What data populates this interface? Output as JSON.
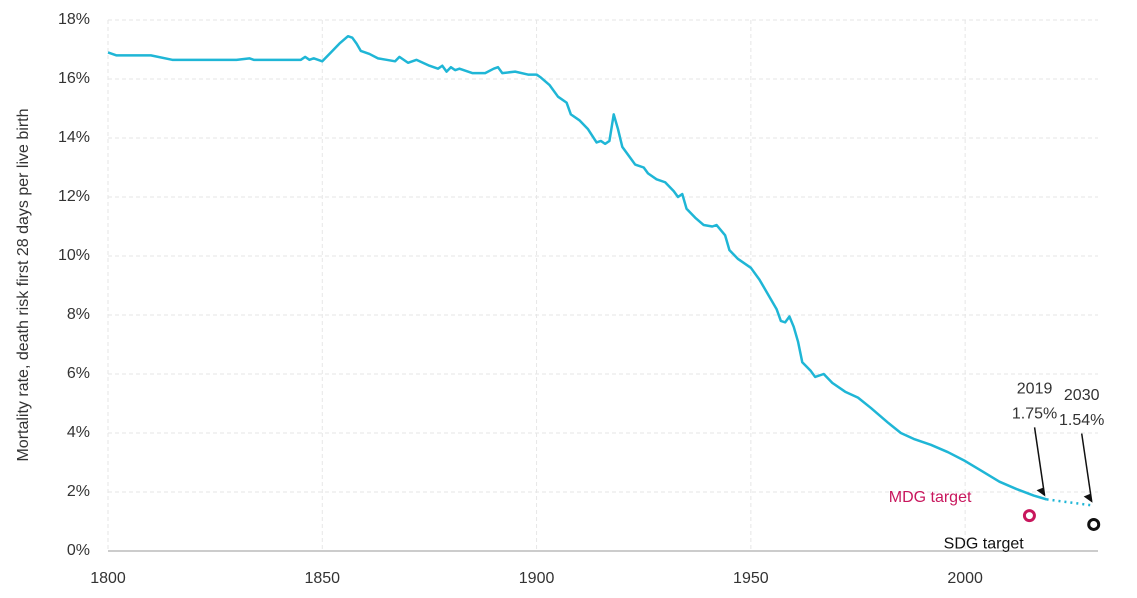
{
  "chart_data": {
    "type": "line",
    "y_label": "Mortality rate, death risk first 28 days per live birth",
    "xlim": [
      1800,
      2031
    ],
    "xticks": [
      1800,
      1850,
      1900,
      1950,
      2000
    ],
    "ylim": [
      0,
      18
    ],
    "yticks": [
      {
        "value": 0,
        "label": "0%"
      },
      {
        "value": 2,
        "label": "2%"
      },
      {
        "value": 4,
        "label": "4%"
      },
      {
        "value": 6,
        "label": "6%"
      },
      {
        "value": 8,
        "label": "8%"
      },
      {
        "value": 10,
        "label": "10%"
      },
      {
        "value": 12,
        "label": "12%"
      },
      {
        "value": 14,
        "label": "14%"
      },
      {
        "value": 16,
        "label": "16%"
      },
      {
        "value": 18,
        "label": "18%"
      }
    ],
    "grid": true,
    "series": [
      {
        "color": "#1fb6d6",
        "x": [
          1800,
          1802,
          1805,
          1810,
          1815,
          1820,
          1830,
          1833,
          1834,
          1840,
          1845,
          1846,
          1847,
          1848,
          1850,
          1852,
          1854,
          1856,
          1857,
          1858,
          1859,
          1861,
          1863,
          1865,
          1867,
          1868,
          1870,
          1872,
          1875,
          1877,
          1878,
          1879,
          1880,
          1881,
          1882,
          1885,
          1888,
          1890,
          1891,
          1892,
          1895,
          1898,
          1900,
          1901,
          1903,
          1905,
          1907,
          1908,
          1910,
          1912,
          1914,
          1915,
          1916,
          1917,
          1918,
          1919,
          1920,
          1922,
          1923,
          1925,
          1926,
          1928,
          1930,
          1932,
          1933,
          1934,
          1935,
          1937,
          1939,
          1941,
          1942,
          1944,
          1945,
          1947,
          1950,
          1952,
          1954,
          1956,
          1957,
          1958,
          1959,
          1960,
          1961,
          1962,
          1964,
          1965,
          1967,
          1969,
          1972,
          1975,
          1978,
          1980,
          1982,
          1985,
          1988,
          1992,
          1996,
          2000,
          2004,
          2008,
          2012,
          2016,
          2019
        ],
        "values": [
          16.9,
          16.8,
          16.8,
          16.8,
          16.65,
          16.65,
          16.65,
          16.7,
          16.65,
          16.65,
          16.65,
          16.75,
          16.65,
          16.7,
          16.6,
          16.9,
          17.2,
          17.45,
          17.4,
          17.2,
          16.95,
          16.85,
          16.7,
          16.65,
          16.6,
          16.75,
          16.55,
          16.65,
          16.45,
          16.35,
          16.45,
          16.25,
          16.4,
          16.3,
          16.35,
          16.2,
          16.2,
          16.35,
          16.4,
          16.2,
          16.25,
          16.15,
          16.15,
          16.05,
          15.8,
          15.4,
          15.2,
          14.8,
          14.6,
          14.3,
          13.85,
          13.9,
          13.8,
          13.9,
          14.8,
          14.3,
          13.7,
          13.3,
          13.1,
          13.0,
          12.8,
          12.6,
          12.5,
          12.2,
          12.0,
          12.1,
          11.6,
          11.3,
          11.05,
          11.0,
          11.05,
          10.7,
          10.2,
          9.9,
          9.6,
          9.2,
          8.7,
          8.2,
          7.8,
          7.75,
          7.95,
          7.6,
          7.1,
          6.4,
          6.1,
          5.9,
          6.0,
          5.7,
          5.4,
          5.2,
          4.85,
          4.6,
          4.35,
          4.0,
          3.8,
          3.6,
          3.35,
          3.05,
          2.7,
          2.35,
          2.1,
          1.88,
          1.75
        ]
      },
      {
        "color": "#1fb6d6",
        "dashed": true,
        "x": [
          2019,
          2030
        ],
        "values": [
          1.75,
          1.54
        ]
      }
    ],
    "annotations": [
      {
        "lines": [
          "2019",
          "1.75%"
        ],
        "x": 2019,
        "value": 1.75
      },
      {
        "lines": [
          "2030",
          "1.54%"
        ],
        "x": 2030,
        "value": 1.54
      }
    ],
    "points": [
      {
        "name": "MDG target",
        "x": 2015,
        "value": 1.2,
        "color": "#c8175d"
      },
      {
        "name": "SDG target",
        "x": 2030,
        "value": 0.9,
        "color": "#111111"
      }
    ]
  }
}
